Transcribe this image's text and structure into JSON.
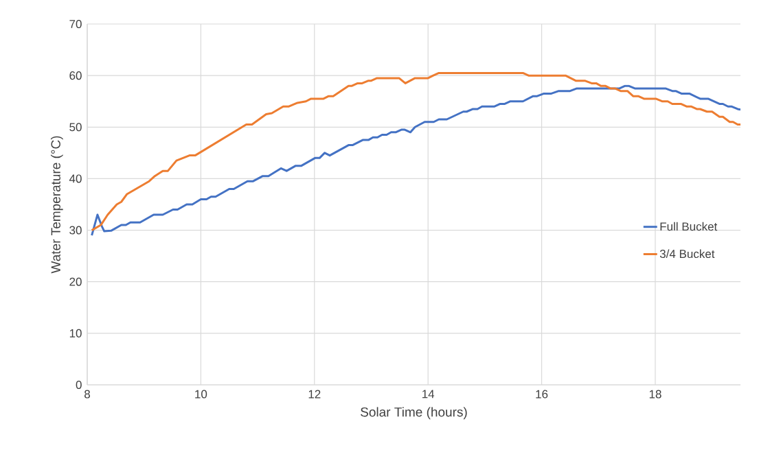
{
  "chart_data": {
    "type": "line",
    "xlabel": "Solar Time (hours)",
    "ylabel": "Water Temperature (°C)",
    "xlim": [
      8,
      19.5
    ],
    "xticks": [
      8,
      10,
      12,
      14,
      16,
      18
    ],
    "ylim": [
      0,
      70
    ],
    "yticks": [
      0,
      10,
      20,
      30,
      40,
      50,
      60,
      70
    ],
    "grid": true,
    "legend": "right",
    "marker": "none",
    "line_style": "solid",
    "series": [
      {
        "name": "Full Bucket",
        "color": "#4472c4",
        "x": [
          8.08,
          8.18,
          8.26,
          8.3,
          8.42,
          8.6,
          8.68,
          8.76,
          8.93,
          9.17,
          9.33,
          9.51,
          9.59,
          9.75,
          9.85,
          10.0,
          10.1,
          10.18,
          10.26,
          10.5,
          10.58,
          10.82,
          10.92,
          11.09,
          11.19,
          11.41,
          11.51,
          11.67,
          11.77,
          12.01,
          12.09,
          12.18,
          12.27,
          12.6,
          12.67,
          12.85,
          12.95,
          13.03,
          13.11,
          13.19,
          13.27,
          13.35,
          13.43,
          13.53,
          13.59,
          13.69,
          13.77,
          13.94,
          14.1,
          14.19,
          14.33,
          14.62,
          14.68,
          14.79,
          14.87,
          14.95,
          15.17,
          15.27,
          15.35,
          15.45,
          15.67,
          15.85,
          15.92,
          16.04,
          16.17,
          16.3,
          16.5,
          16.62,
          17.37,
          17.47,
          17.53,
          17.64,
          18.18,
          18.3,
          18.36,
          18.46,
          18.6,
          18.79,
          18.93,
          19.13,
          19.19,
          19.28,
          19.34,
          19.45,
          19.5
        ],
        "values": [
          29,
          33,
          30.7,
          29.8,
          29.9,
          31,
          31,
          31.5,
          31.5,
          33,
          33,
          34,
          34,
          35,
          35,
          36,
          36,
          36.5,
          36.5,
          38,
          38,
          39.5,
          39.5,
          40.5,
          40.5,
          42,
          41.5,
          42.5,
          42.5,
          44,
          44,
          45,
          44.5,
          46.5,
          46.5,
          47.5,
          47.5,
          48,
          48,
          48.5,
          48.5,
          49,
          49,
          49.5,
          49.5,
          49,
          50,
          51,
          51,
          51.5,
          51.5,
          53,
          53,
          53.5,
          53.5,
          54,
          54,
          54.5,
          54.5,
          55,
          55,
          56,
          56,
          56.5,
          56.5,
          57,
          57,
          57.5,
          57.5,
          58,
          58,
          57.5,
          57.5,
          57,
          57,
          56.5,
          56.5,
          55.5,
          55.5,
          54.5,
          54.5,
          54,
          54,
          53.5,
          53.4
        ]
      },
      {
        "name": "3/4 Bucket",
        "color": "#ed7d31",
        "x": [
          8.08,
          8.24,
          8.36,
          8.52,
          8.6,
          8.7,
          9.09,
          9.19,
          9.33,
          9.42,
          9.57,
          9.8,
          9.9,
          10.8,
          10.9,
          11.15,
          11.25,
          11.45,
          11.55,
          11.7,
          11.85,
          11.94,
          12.16,
          12.25,
          12.33,
          12.6,
          12.66,
          12.76,
          12.84,
          12.95,
          13.0,
          13.1,
          13.49,
          13.6,
          13.77,
          14.0,
          14.09,
          14.19,
          15.67,
          15.77,
          16.42,
          16.6,
          16.76,
          16.88,
          16.96,
          17.04,
          17.12,
          17.21,
          17.29,
          17.39,
          17.51,
          17.61,
          17.7,
          17.8,
          18.01,
          18.12,
          18.22,
          18.3,
          18.45,
          18.55,
          18.63,
          18.73,
          18.79,
          18.91,
          19.0,
          19.13,
          19.19,
          19.31,
          19.37,
          19.45,
          19.5
        ],
        "values": [
          30,
          31,
          33,
          35,
          35.5,
          37,
          39.5,
          40.5,
          41.5,
          41.5,
          43.5,
          44.5,
          44.5,
          50.5,
          50.5,
          52.5,
          52.7,
          54,
          54,
          54.7,
          55,
          55.5,
          55.5,
          56,
          56,
          58,
          58,
          58.5,
          58.5,
          59,
          59,
          59.5,
          59.5,
          58.5,
          59.5,
          59.5,
          60,
          60.5,
          60.5,
          60,
          60,
          59,
          59,
          58.5,
          58.5,
          58,
          58,
          57.5,
          57.5,
          57,
          57,
          56,
          56,
          55.5,
          55.5,
          55,
          55,
          54.5,
          54.5,
          54,
          54,
          53.5,
          53.5,
          53,
          53,
          52,
          52,
          51,
          51,
          50.5,
          50.5
        ]
      }
    ]
  }
}
